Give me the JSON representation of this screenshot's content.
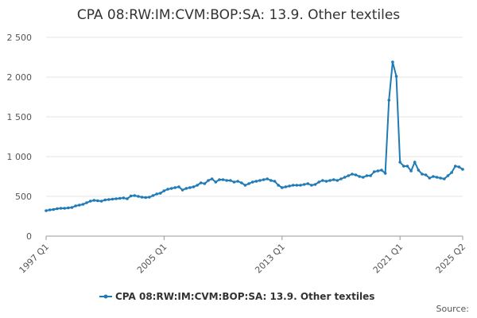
{
  "chart_data": {
    "type": "line",
    "title": "CPA 08:RW:IM:CVM:BOP:SA: 13.9. Other textiles",
    "source": "Source:",
    "categories": [
      "1997 Q1",
      null,
      null,
      null,
      null,
      null,
      null,
      null,
      null,
      null,
      null,
      null,
      null,
      null,
      null,
      null,
      null,
      null,
      null,
      null,
      null,
      null,
      null,
      null,
      null,
      null,
      null,
      null,
      null,
      null,
      null,
      null,
      "2005 Q1",
      null,
      null,
      null,
      null,
      null,
      null,
      null,
      null,
      null,
      null,
      null,
      null,
      null,
      null,
      null,
      null,
      null,
      null,
      null,
      null,
      null,
      null,
      null,
      null,
      null,
      null,
      null,
      null,
      null,
      null,
      null,
      "2013 Q1",
      null,
      null,
      null,
      null,
      null,
      null,
      null,
      null,
      null,
      null,
      null,
      null,
      null,
      null,
      null,
      null,
      null,
      null,
      null,
      null,
      null,
      null,
      null,
      null,
      null,
      null,
      null,
      null,
      null,
      null,
      null,
      "2021 Q1",
      null,
      null,
      null,
      null,
      null,
      null,
      null,
      null,
      null,
      null,
      null,
      null,
      null,
      null,
      null,
      null,
      "2025 Q2"
    ],
    "series": [
      {
        "name": "CPA 08:RW:IM:CVM:BOP:SA: 13.9. Other textiles",
        "color": "#1f7bb6",
        "values": [
          320,
          330,
          335,
          345,
          350,
          350,
          355,
          360,
          380,
          390,
          400,
          420,
          440,
          450,
          445,
          440,
          455,
          460,
          465,
          470,
          475,
          480,
          470,
          505,
          510,
          500,
          490,
          485,
          490,
          510,
          530,
          540,
          570,
          590,
          600,
          610,
          620,
          580,
          600,
          610,
          620,
          640,
          670,
          660,
          700,
          720,
          680,
          710,
          710,
          700,
          700,
          680,
          690,
          670,
          640,
          660,
          680,
          690,
          700,
          710,
          720,
          700,
          690,
          640,
          610,
          620,
          630,
          640,
          640,
          640,
          650,
          660,
          640,
          650,
          680,
          700,
          690,
          700,
          710,
          700,
          720,
          740,
          760,
          780,
          770,
          750,
          740,
          760,
          760,
          810,
          820,
          830,
          790,
          1710,
          2190,
          2010,
          930,
          880,
          880,
          820,
          930,
          830,
          780,
          770,
          730,
          750,
          740,
          730,
          720,
          760,
          800,
          880,
          870,
          840
        ]
      }
    ],
    "ylim": [
      0,
      2500
    ],
    "yticks": [
      0,
      500,
      {
        "value": 1000,
        "label": "1 000"
      },
      {
        "value": 1500,
        "label": "1 500"
      },
      {
        "value": 2000,
        "label": "2 000"
      },
      {
        "value": 2500,
        "label": "2 500"
      }
    ],
    "grid": true
  }
}
